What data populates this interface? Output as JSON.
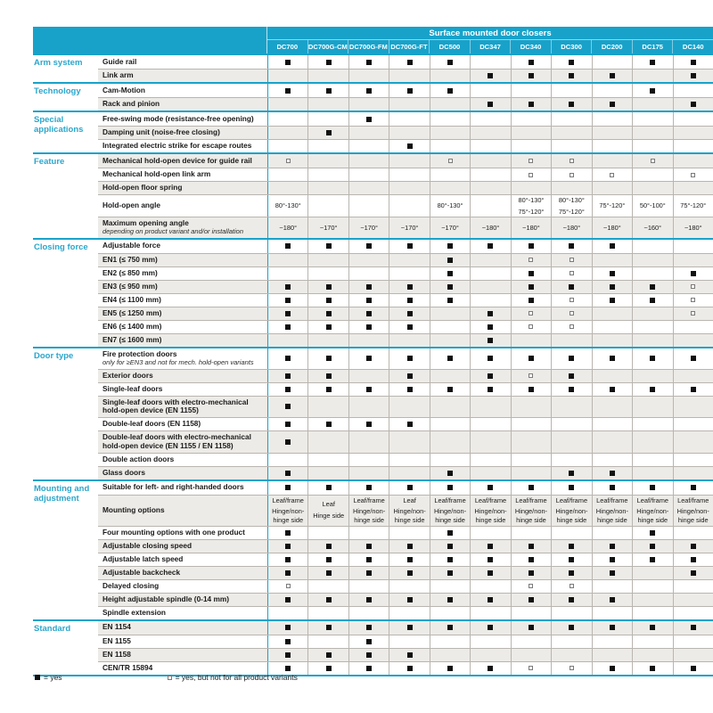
{
  "table": {
    "title": "Surface mounted door closers",
    "columns": [
      "DC700",
      "DC700G-CM",
      "DC700G-FM",
      "DC700G-FT",
      "DC500",
      "DC347",
      "DC340",
      "DC300",
      "DC200",
      "DC175",
      "DC140"
    ],
    "groups": [
      {
        "category": "Arm system",
        "rows": [
          {
            "label": "Guide rail",
            "cells": [
              "F",
              "F",
              "F",
              "F",
              "F",
              "",
              "F",
              "F",
              "",
              "F",
              "F"
            ]
          },
          {
            "label": "Link arm",
            "cells": [
              "",
              "",
              "",
              "",
              "",
              "F",
              "F",
              "F",
              "F",
              "",
              "F"
            ]
          }
        ]
      },
      {
        "category": "Technology",
        "rows": [
          {
            "label": "Cam-Motion",
            "cells": [
              "F",
              "F",
              "F",
              "F",
              "F",
              "",
              "",
              "",
              "",
              "F",
              ""
            ]
          },
          {
            "label": "Rack and pinion",
            "cells": [
              "",
              "",
              "",
              "",
              "",
              "F",
              "F",
              "F",
              "F",
              "",
              "F"
            ]
          }
        ]
      },
      {
        "category": "Special applications",
        "rows": [
          {
            "label": "Free-swing mode (resistance-free opening)",
            "cells": [
              "",
              "",
              "F",
              "",
              "",
              "",
              "",
              "",
              "",
              "",
              ""
            ]
          },
          {
            "label": "Damping unit (noise-free closing)",
            "cells": [
              "",
              "F",
              "",
              "",
              "",
              "",
              "",
              "",
              "",
              "",
              ""
            ]
          },
          {
            "label": "Integrated electric strike for escape routes",
            "cells": [
              "",
              "",
              "",
              "F",
              "",
              "",
              "",
              "",
              "",
              "",
              ""
            ]
          }
        ]
      },
      {
        "category": "Feature",
        "rows": [
          {
            "label": "Mechanical hold-open device for guide rail",
            "cells": [
              "O",
              "",
              "",
              "",
              "O",
              "",
              "O",
              "O",
              "",
              "O",
              ""
            ]
          },
          {
            "label": "Mechanical hold-open link arm",
            "cells": [
              "",
              "",
              "",
              "",
              "",
              "",
              "O",
              "O",
              "O",
              "",
              "O"
            ]
          },
          {
            "label": "Hold-open floor spring",
            "cells": [
              "",
              "",
              "",
              "",
              "",
              "",
              "",
              "",
              "",
              "",
              ""
            ]
          },
          {
            "label": "Hold-open angle",
            "cells": [
              "80°-130°",
              "",
              "",
              "",
              "80°-130°",
              "",
              "80°-130°|75°-120°",
              "80°-130°|75°-120°",
              "75°-120°",
              "50°-100°",
              "75°-120°"
            ]
          },
          {
            "label": "Maximum opening angle",
            "sublabel": "depending on product variant and/or installation",
            "cells": [
              "~180°",
              "~170°",
              "~170°",
              "~170°",
              "~170°",
              "~180°",
              "~180°",
              "~180°",
              "~180°",
              "~160°",
              "~180°"
            ]
          }
        ]
      },
      {
        "category": "Closing force",
        "rows": [
          {
            "label": "Adjustable force",
            "cells": [
              "F",
              "F",
              "F",
              "F",
              "F",
              "F",
              "F",
              "F",
              "F",
              "",
              ""
            ]
          },
          {
            "label": "EN1 (≤ 750 mm)",
            "cells": [
              "",
              "",
              "",
              "",
              "F",
              "",
              "O",
              "O",
              "",
              "",
              ""
            ]
          },
          {
            "label": "EN2 (≤ 850 mm)",
            "cells": [
              "",
              "",
              "",
              "",
              "F",
              "",
              "F",
              "O",
              "F",
              "",
              "F"
            ]
          },
          {
            "label": "EN3 (≤ 950 mm)",
            "cells": [
              "F",
              "F",
              "F",
              "F",
              "F",
              "",
              "F",
              "F",
              "F",
              "F",
              "O"
            ]
          },
          {
            "label": "EN4 (≤ 1100 mm)",
            "cells": [
              "F",
              "F",
              "F",
              "F",
              "F",
              "",
              "F",
              "O",
              "F",
              "F",
              "O"
            ]
          },
          {
            "label": "EN5 (≤ 1250 mm)",
            "cells": [
              "F",
              "F",
              "F",
              "F",
              "",
              "F",
              "O",
              "O",
              "",
              "",
              "O"
            ]
          },
          {
            "label": "EN6 (≤ 1400 mm)",
            "cells": [
              "F",
              "F",
              "F",
              "F",
              "",
              "F",
              "O",
              "O",
              "",
              "",
              ""
            ]
          },
          {
            "label": "EN7 (≤ 1600 mm)",
            "cells": [
              "",
              "",
              "",
              "",
              "",
              "F",
              "",
              "",
              "",
              "",
              ""
            ]
          }
        ]
      },
      {
        "category": "Door type",
        "rows": [
          {
            "label": "Fire protection doors",
            "sublabel": "only for ≥EN3 and not for mech. hold-open variants",
            "cells": [
              "F",
              "F",
              "F",
              "F",
              "F",
              "F",
              "F",
              "F",
              "F",
              "F",
              "F"
            ]
          },
          {
            "label": "Exterior doors",
            "cells": [
              "F",
              "F",
              "",
              "F",
              "",
              "F",
              "O",
              "F",
              "",
              "",
              ""
            ]
          },
          {
            "label": "Single-leaf doors",
            "cells": [
              "F",
              "F",
              "F",
              "F",
              "F",
              "F",
              "F",
              "F",
              "F",
              "F",
              "F"
            ]
          },
          {
            "label": "Single-leaf doors with electro-mechanical hold-open device (EN 1155)",
            "cells": [
              "F",
              "",
              "",
              "",
              "",
              "",
              "",
              "",
              "",
              "",
              ""
            ]
          },
          {
            "label": "Double-leaf doors (EN 1158)",
            "cells": [
              "F",
              "F",
              "F",
              "F",
              "",
              "",
              "",
              "",
              "",
              "",
              ""
            ]
          },
          {
            "label": "Double-leaf doors with electro-mechanical hold-open device (EN 1155 / EN 1158)",
            "cells": [
              "F",
              "",
              "",
              "",
              "",
              "",
              "",
              "",
              "",
              "",
              ""
            ]
          },
          {
            "label": "Double action doors",
            "cells": [
              "",
              "",
              "",
              "",
              "",
              "",
              "",
              "",
              "",
              "",
              ""
            ]
          },
          {
            "label": "Glass doors",
            "cells": [
              "F",
              "",
              "",
              "",
              "F",
              "",
              "",
              "F",
              "F",
              "",
              ""
            ]
          }
        ]
      },
      {
        "category": "Mounting and adjustment",
        "rows": [
          {
            "label": "Suitable for left- and right-handed doors",
            "cells": [
              "F",
              "F",
              "F",
              "F",
              "F",
              "F",
              "F",
              "F",
              "F",
              "F",
              "F"
            ]
          },
          {
            "label": "Mounting options",
            "cells": [
              "Leaf/frame|Hinge/non-hinge side",
              "Leaf|Hinge side",
              "Leaf/frame|Hinge/non-hinge side",
              "Leaf|Hinge/non-hinge side",
              "Leaf/frame|Hinge/non-hinge side",
              "Leaf/frame|Hinge/non-hinge side",
              "Leaf/frame|Hinge/non-hinge side",
              "Leaf/frame|Hinge/non-hinge side",
              "Leaf/frame|Hinge/non-hinge side",
              "Leaf/frame|Hinge/non-hinge side",
              "Leaf/frame|Hinge/non-hinge side"
            ]
          },
          {
            "label": "Four mounting options with one product",
            "cells": [
              "F",
              "",
              "",
              "",
              "F",
              "",
              "",
              "",
              "",
              "F",
              ""
            ]
          },
          {
            "label": "Adjustable closing speed",
            "cells": [
              "F",
              "F",
              "F",
              "F",
              "F",
              "F",
              "F",
              "F",
              "F",
              "F",
              "F"
            ]
          },
          {
            "label": "Adjustable latch speed",
            "cells": [
              "F",
              "F",
              "F",
              "F",
              "F",
              "F",
              "F",
              "F",
              "F",
              "F",
              "F"
            ]
          },
          {
            "label": "Adjustable backcheck",
            "cells": [
              "F",
              "F",
              "F",
              "F",
              "F",
              "F",
              "F",
              "F",
              "F",
              "",
              "F"
            ]
          },
          {
            "label": "Delayed closing",
            "cells": [
              "O",
              "",
              "",
              "",
              "",
              "",
              "O",
              "O",
              "",
              "",
              ""
            ]
          },
          {
            "label": "Height adjustable spindle (0-14 mm)",
            "cells": [
              "F",
              "F",
              "F",
              "F",
              "F",
              "F",
              "F",
              "F",
              "F",
              "",
              ""
            ]
          },
          {
            "label": "Spindle extension",
            "cells": [
              "",
              "",
              "",
              "",
              "",
              "",
              "",
              "",
              "",
              "",
              ""
            ]
          }
        ]
      },
      {
        "category": "Standard",
        "rows": [
          {
            "label": "EN 1154",
            "cells": [
              "F",
              "F",
              "F",
              "F",
              "F",
              "F",
              "F",
              "F",
              "F",
              "F",
              "F"
            ]
          },
          {
            "label": "EN 1155",
            "cells": [
              "F",
              "",
              "F",
              "",
              "",
              "",
              "",
              "",
              "",
              "",
              ""
            ]
          },
          {
            "label": "EN 1158",
            "cells": [
              "F",
              "F",
              "F",
              "F",
              "",
              "",
              "",
              "",
              "",
              "",
              ""
            ]
          },
          {
            "label": "CEN/TR 15894",
            "cells": [
              "F",
              "F",
              "F",
              "F",
              "F",
              "F",
              "O",
              "O",
              "F",
              "F",
              "F"
            ]
          }
        ]
      }
    ]
  },
  "legend": {
    "filled_label": "=  yes",
    "open_label": "=  yes, but not for all product variants"
  },
  "colors": {
    "accent_cyan": "#18a2ca",
    "row_stripe": "#edebe7",
    "square_filled": "#111111"
  }
}
